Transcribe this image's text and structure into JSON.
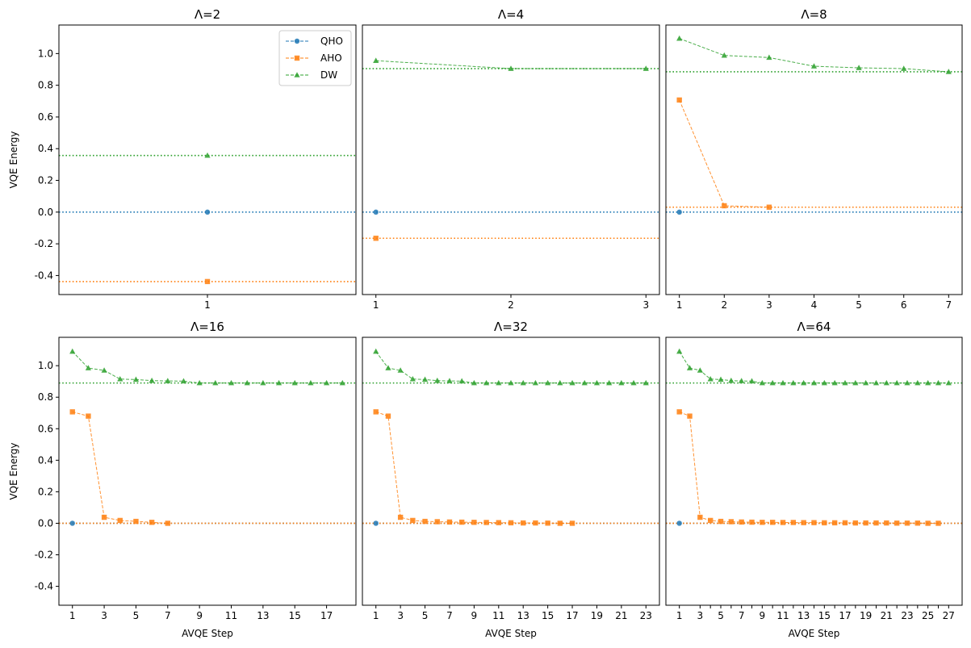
{
  "chart_data": {
    "type": "line",
    "layout": "2x3 subplots, shared y-axis",
    "ylabel": "VQE Energy",
    "xlabel": "AVQE Step",
    "ylim": [
      -0.52,
      1.18
    ],
    "yticks": [
      "-0.4",
      "-0.2",
      "0.0",
      "0.2",
      "0.4",
      "0.6",
      "0.8",
      "1.0"
    ],
    "legend": {
      "placement": "upper-right of first panel",
      "entries": [
        {
          "name": "QHO",
          "color": "#1f77b4",
          "marker": "circle"
        },
        {
          "name": "AHO",
          "color": "#ff7f0e",
          "marker": "square"
        },
        {
          "name": "DW",
          "color": "#2ca02c",
          "marker": "triangle"
        }
      ]
    },
    "panels": [
      {
        "title": "Λ=2",
        "xlim": [
          0,
          2
        ],
        "xticks": [
          1
        ],
        "reference": {
          "QHO": 0.0,
          "AHO": -0.438,
          "DW": 0.357
        },
        "series": [
          {
            "name": "QHO",
            "x": [
              1
            ],
            "y": [
              0.0
            ]
          },
          {
            "name": "AHO",
            "x": [
              1
            ],
            "y": [
              -0.438
            ]
          },
          {
            "name": "DW",
            "x": [
              1
            ],
            "y": [
              0.357
            ]
          }
        ]
      },
      {
        "title": "Λ=4",
        "xlim": [
          0.9,
          3.1
        ],
        "xticks": [
          1,
          2,
          3
        ],
        "reference": {
          "QHO": 0.0,
          "AHO": -0.165,
          "DW": 0.905
        },
        "series": [
          {
            "name": "QHO",
            "x": [
              1
            ],
            "y": [
              0.0
            ]
          },
          {
            "name": "AHO",
            "x": [
              1
            ],
            "y": [
              -0.165
            ]
          },
          {
            "name": "DW",
            "x": [
              1,
              2,
              3
            ],
            "y": [
              0.955,
              0.905,
              0.905
            ]
          }
        ]
      },
      {
        "title": "Λ=8",
        "xlim": [
          0.7,
          7.3
        ],
        "xticks": [
          1,
          2,
          3,
          4,
          5,
          6,
          7
        ],
        "reference": {
          "QHO": 0.0,
          "AHO": 0.031,
          "DW": 0.885
        },
        "series": [
          {
            "name": "QHO",
            "x": [
              1
            ],
            "y": [
              0.0
            ]
          },
          {
            "name": "AHO",
            "x": [
              1,
              2,
              3
            ],
            "y": [
              0.707,
              0.04,
              0.031
            ]
          },
          {
            "name": "DW",
            "x": [
              1,
              2,
              3,
              4,
              5,
              6,
              7
            ],
            "y": [
              1.095,
              0.988,
              0.975,
              0.92,
              0.91,
              0.905,
              0.885
            ]
          }
        ]
      },
      {
        "title": "Λ=16",
        "xlim": [
          0.15,
          18.85
        ],
        "xticks": [
          1,
          3,
          5,
          7,
          9,
          11,
          13,
          15,
          17
        ],
        "reference": {
          "QHO": 0.0,
          "AHO": 0.0,
          "DW": 0.89
        },
        "series": [
          {
            "name": "QHO",
            "x": [
              1
            ],
            "y": [
              0.0
            ]
          },
          {
            "name": "AHO",
            "x": [
              1,
              2,
              3,
              4,
              5,
              6,
              7
            ],
            "y": [
              0.707,
              0.68,
              0.038,
              0.018,
              0.012,
              0.006,
              0.0
            ]
          },
          {
            "name": "DW",
            "x": [
              1,
              2,
              3,
              4,
              5,
              6,
              7,
              8,
              9,
              10,
              11,
              12,
              13,
              14,
              15,
              16,
              17,
              18
            ],
            "y": [
              1.09,
              0.985,
              0.97,
              0.915,
              0.912,
              0.905,
              0.903,
              0.902,
              0.89,
              0.89,
              0.89,
              0.89,
              0.89,
              0.89,
              0.89,
              0.89,
              0.89,
              0.89
            ]
          }
        ]
      },
      {
        "title": "Λ=32",
        "xlim": [
          -0.1,
          24.1
        ],
        "xticks": [
          1,
          3,
          5,
          7,
          9,
          11,
          13,
          15,
          17,
          19,
          21,
          23
        ],
        "reference": {
          "QHO": 0.0,
          "AHO": 0.0,
          "DW": 0.89
        },
        "series": [
          {
            "name": "QHO",
            "x": [
              1
            ],
            "y": [
              0.0
            ]
          },
          {
            "name": "AHO",
            "x": [
              1,
              2,
              3,
              4,
              5,
              6,
              7,
              8,
              9,
              10,
              11,
              12,
              13,
              14,
              15,
              16,
              17
            ],
            "y": [
              0.707,
              0.68,
              0.038,
              0.018,
              0.012,
              0.01,
              0.008,
              0.007,
              0.006,
              0.005,
              0.004,
              0.003,
              0.002,
              0.002,
              0.001,
              0.0,
              0.0
            ]
          },
          {
            "name": "DW",
            "x": [
              1,
              2,
              3,
              4,
              5,
              6,
              7,
              8,
              9,
              10,
              11,
              12,
              13,
              14,
              15,
              16,
              17,
              18,
              19,
              20,
              21,
              22,
              23
            ],
            "y": [
              1.09,
              0.985,
              0.97,
              0.915,
              0.912,
              0.905,
              0.903,
              0.902,
              0.89,
              0.89,
              0.89,
              0.89,
              0.89,
              0.89,
              0.89,
              0.89,
              0.89,
              0.89,
              0.89,
              0.89,
              0.89,
              0.89,
              0.89
            ]
          }
        ]
      },
      {
        "title": "Λ=64",
        "xlim": [
          -0.3,
          28.3
        ],
        "xticks": [
          1,
          3,
          5,
          7,
          9,
          11,
          13,
          15,
          17,
          19,
          21,
          23,
          25,
          27
        ],
        "xticks_minor": [
          4,
          6,
          8,
          10,
          12,
          14,
          16,
          18,
          20,
          22,
          24,
          26
        ],
        "reference": {
          "QHO": 0.0,
          "AHO": 0.0,
          "DW": 0.89
        },
        "series": [
          {
            "name": "QHO",
            "x": [
              1
            ],
            "y": [
              0.0
            ]
          },
          {
            "name": "AHO",
            "x": [
              1,
              2,
              3,
              4,
              5,
              6,
              7,
              8,
              9,
              10,
              11,
              12,
              13,
              14,
              15,
              16,
              17,
              18,
              19,
              20,
              21,
              22,
              23,
              24,
              25,
              26
            ],
            "y": [
              0.707,
              0.68,
              0.038,
              0.018,
              0.012,
              0.01,
              0.008,
              0.007,
              0.006,
              0.006,
              0.005,
              0.005,
              0.004,
              0.004,
              0.003,
              0.003,
              0.003,
              0.002,
              0.002,
              0.002,
              0.002,
              0.001,
              0.001,
              0.001,
              0.0,
              0.0
            ]
          },
          {
            "name": "DW",
            "x": [
              1,
              2,
              3,
              4,
              5,
              6,
              7,
              8,
              9,
              10,
              11,
              12,
              13,
              14,
              15,
              16,
              17,
              18,
              19,
              20,
              21,
              22,
              23,
              24,
              25,
              26,
              27
            ],
            "y": [
              1.09,
              0.985,
              0.97,
              0.915,
              0.912,
              0.905,
              0.903,
              0.902,
              0.89,
              0.89,
              0.89,
              0.89,
              0.89,
              0.89,
              0.89,
              0.89,
              0.89,
              0.89,
              0.89,
              0.89,
              0.89,
              0.89,
              0.89,
              0.89,
              0.89,
              0.89,
              0.89
            ]
          }
        ]
      }
    ]
  }
}
